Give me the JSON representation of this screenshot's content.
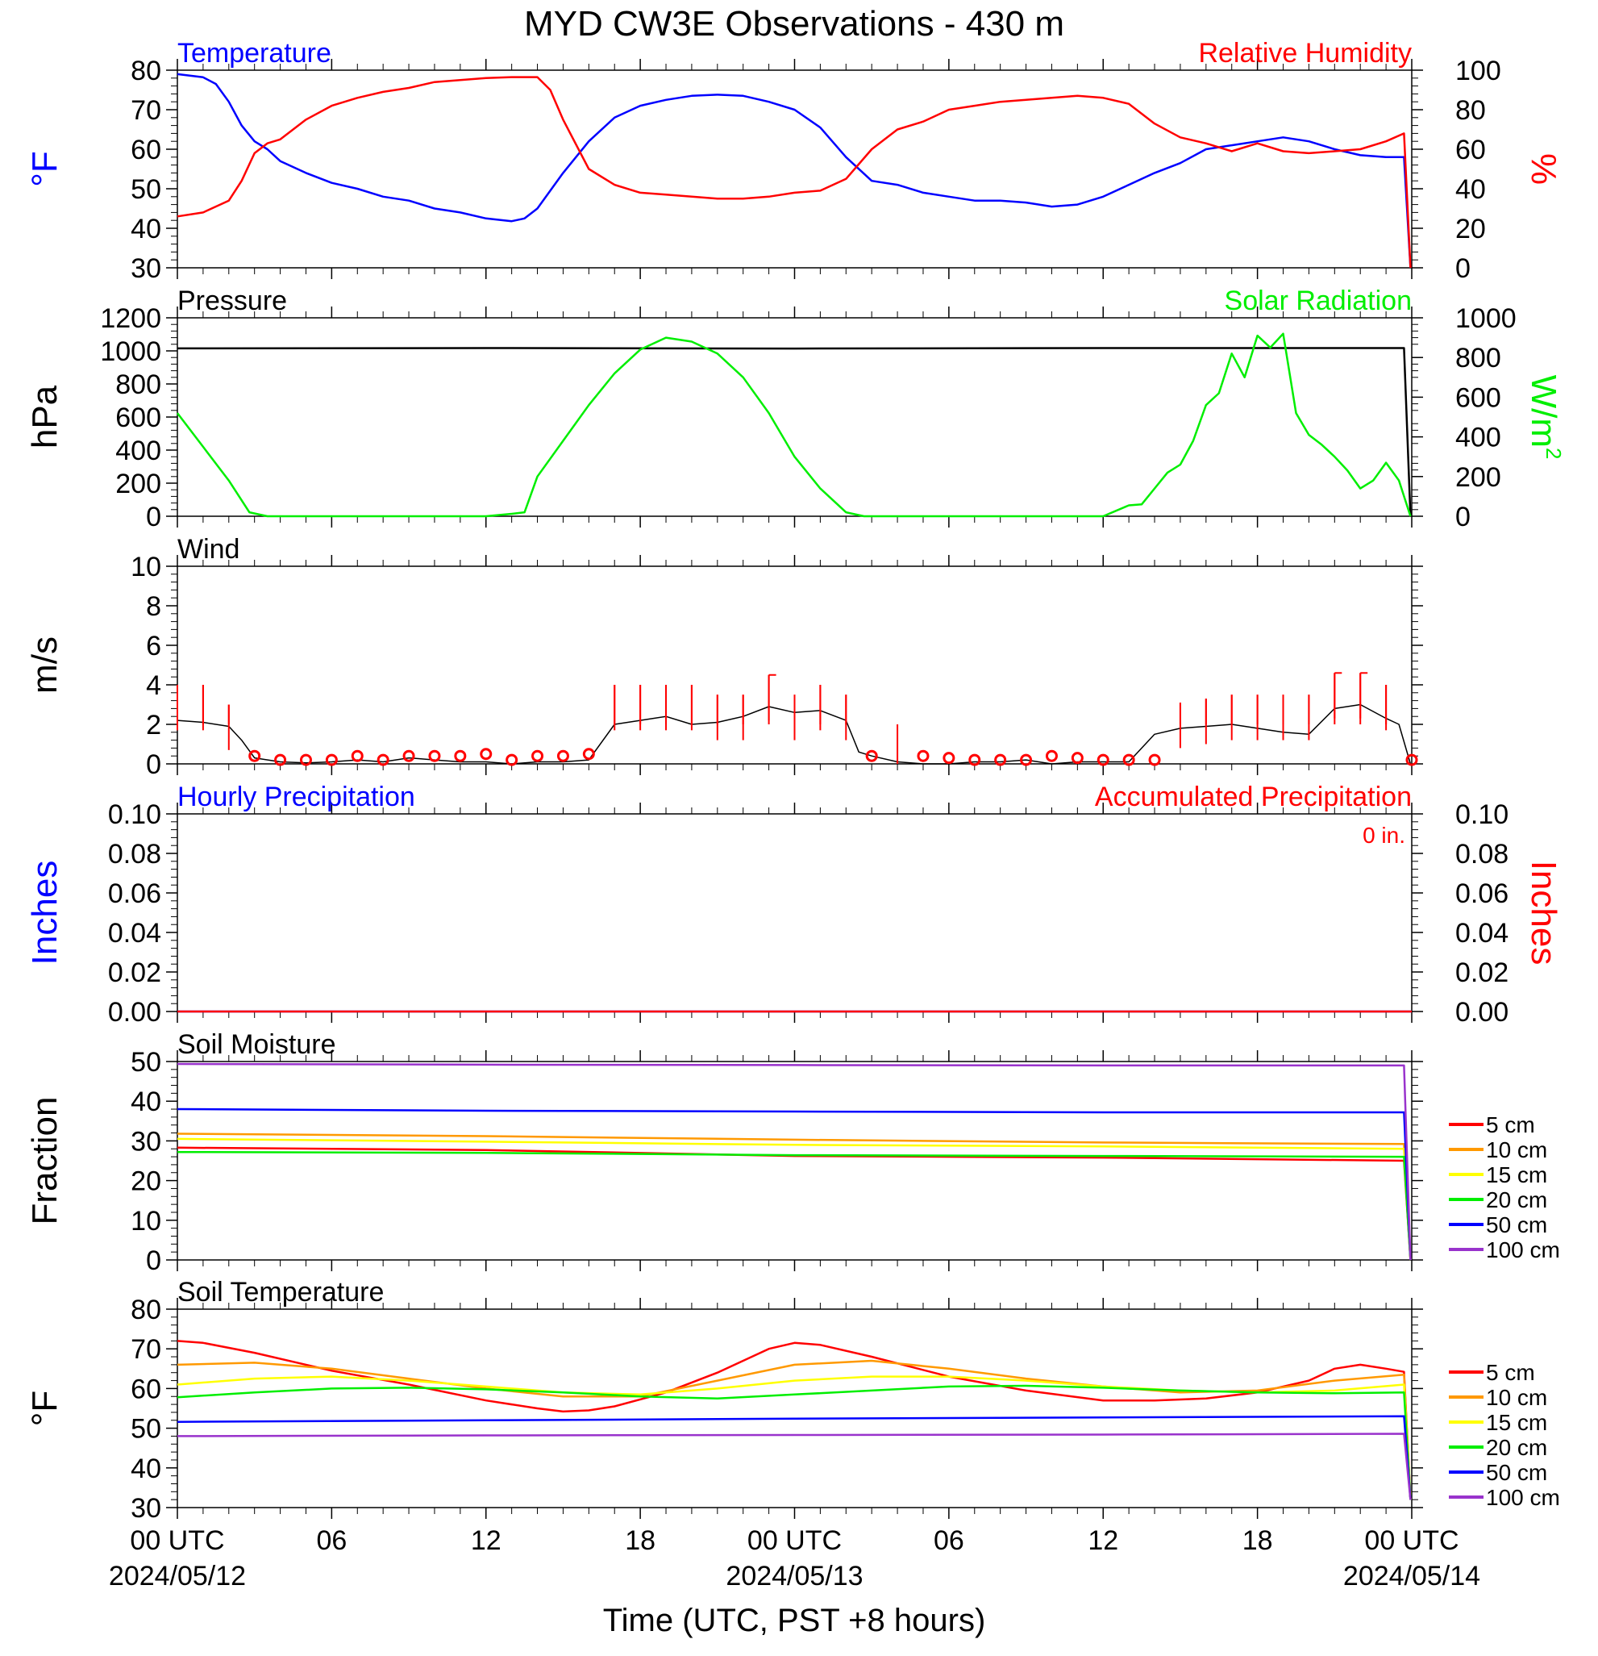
{
  "title": "MYD CW3E Observations - 430 m",
  "xlabel": "Time (UTC, PST +8 hours)",
  "colors": {
    "blue": "#0000ff",
    "red": "#ff0000",
    "green": "#00ee00",
    "black": "#000000",
    "orange": "#ff9900",
    "yellow": "#ffff00",
    "purple": "#9933cc"
  },
  "chart_data": [
    {
      "id": "temp_rh",
      "type": "line",
      "left_label": "Temperature",
      "right_label": "Relative Humidity",
      "left_unit": "°F",
      "right_unit": "%",
      "ylim_left": [
        30,
        80
      ],
      "yticks_left": [
        "30",
        "40",
        "50",
        "60",
        "70",
        "80"
      ],
      "ylim_right": [
        0,
        100
      ],
      "yticks_right": [
        "0",
        "20",
        "40",
        "60",
        "80",
        "100"
      ],
      "series": [
        {
          "name": "Temperature",
          "axis": "left",
          "color": "#0000ff",
          "x": [
            0,
            1,
            1.5,
            2,
            2.5,
            3,
            3.5,
            4,
            5,
            6,
            7,
            8,
            9,
            10,
            11,
            12,
            13,
            13.5,
            14,
            15,
            16,
            17,
            18,
            19,
            20,
            21,
            22,
            23,
            24,
            25,
            26,
            27,
            28,
            29,
            30,
            31,
            32,
            33,
            34,
            35,
            36,
            37,
            38,
            39,
            40,
            41,
            42,
            43,
            44,
            45,
            46,
            47,
            47.7,
            47.95
          ],
          "y": [
            79,
            78.2,
            76.5,
            72,
            66,
            62,
            60,
            57,
            54,
            51.5,
            50,
            48,
            47,
            45,
            44,
            42.5,
            41.8,
            42.5,
            45,
            54,
            62,
            68,
            71,
            72.5,
            73.5,
            73.8,
            73.5,
            72,
            70,
            65.5,
            58,
            52,
            51,
            49,
            48,
            47,
            47,
            46.5,
            45.5,
            46,
            48,
            51,
            54,
            56.5,
            60,
            61,
            62,
            63,
            62,
            60,
            58.5,
            58,
            58,
            30
          ]
        },
        {
          "name": "Relative Humidity",
          "axis": "right",
          "color": "#ff0000",
          "x": [
            0,
            1,
            2,
            2.5,
            3,
            3.5,
            4,
            5,
            6,
            7,
            8,
            9,
            10,
            11,
            12,
            13,
            14,
            14.5,
            15,
            16,
            17,
            18,
            19,
            20,
            21,
            22,
            23,
            24,
            25,
            26,
            27,
            28,
            29,
            30,
            31,
            32,
            33,
            34,
            35,
            36,
            37,
            38,
            39,
            40,
            41,
            42,
            43,
            44,
            45,
            46,
            47,
            47.7,
            47.95
          ],
          "y": [
            26,
            28,
            34,
            44,
            58,
            63,
            65,
            75,
            82,
            86,
            89,
            91,
            94,
            95,
            96,
            96.5,
            96.5,
            90,
            75,
            50,
            42,
            38,
            37,
            36,
            35,
            35,
            36,
            38,
            39,
            45,
            60,
            70,
            74,
            80,
            82,
            84,
            85,
            86,
            87,
            86,
            83,
            73,
            66,
            63,
            59,
            63,
            59,
            58,
            59,
            60,
            64,
            68,
            0
          ]
        }
      ]
    },
    {
      "id": "pressure_solar",
      "type": "line",
      "left_label": "Pressure",
      "right_label": "Solar Radiation",
      "left_unit": "hPa",
      "right_unit": "W/m",
      "right_unit_sup": "2",
      "ylim_left": [
        0,
        1200
      ],
      "yticks_left": [
        "0",
        "200",
        "400",
        "600",
        "800",
        "1000",
        "1200"
      ],
      "ylim_right": [
        0,
        1000
      ],
      "yticks_right": [
        "0",
        "200",
        "400",
        "600",
        "800",
        "1000"
      ],
      "series": [
        {
          "name": "Pressure",
          "axis": "left",
          "color": "#000000",
          "x": [
            0,
            12,
            24,
            36,
            47.7,
            47.95
          ],
          "y": [
            1015,
            1017,
            1014,
            1017,
            1017,
            0
          ]
        },
        {
          "name": "Solar Radiation",
          "axis": "right",
          "color": "#00ee00",
          "x": [
            0,
            1,
            2,
            2.8,
            3.5,
            12,
            13,
            13.5,
            14,
            15,
            16,
            17,
            18,
            19,
            20,
            21,
            22,
            23,
            24,
            25,
            26,
            26.7,
            27.5,
            36,
            37,
            37.5,
            38,
            38.5,
            39,
            39.5,
            40,
            40.5,
            41,
            41.5,
            42,
            42.5,
            43,
            43.5,
            44,
            44.5,
            45,
            45.5,
            46,
            46.5,
            47,
            47.5,
            47.95
          ],
          "y": [
            520,
            350,
            180,
            20,
            0,
            0,
            12,
            20,
            200,
            380,
            560,
            720,
            840,
            900,
            880,
            820,
            700,
            520,
            300,
            140,
            20,
            0,
            0,
            0,
            55,
            60,
            140,
            220,
            260,
            380,
            560,
            620,
            820,
            700,
            910,
            850,
            920,
            520,
            410,
            360,
            300,
            230,
            140,
            180,
            270,
            180,
            0
          ]
        }
      ]
    },
    {
      "id": "wind",
      "type": "line",
      "left_label": "Wind",
      "left_unit": "m/s",
      "ylim_left": [
        0,
        10
      ],
      "yticks_left": [
        "0",
        "2",
        "4",
        "6",
        "8",
        "10"
      ],
      "series": [
        {
          "name": "Wind",
          "axis": "left",
          "color": "#000000",
          "x": [
            0,
            1,
            2,
            2.5,
            3,
            4,
            5,
            6,
            7,
            8,
            9,
            10,
            11,
            12,
            13,
            14,
            15,
            16,
            17,
            18,
            19,
            20,
            21,
            22,
            23,
            24,
            25,
            26,
            26.5,
            27,
            28,
            29,
            30,
            31,
            32,
            33,
            34,
            35,
            36,
            37,
            38,
            39,
            40,
            41,
            42,
            43,
            44,
            45,
            46,
            47,
            47.5,
            47.95
          ],
          "y": [
            2.2,
            2.1,
            1.9,
            1.2,
            0.3,
            0.1,
            0.05,
            0.1,
            0.2,
            0.1,
            0.3,
            0.2,
            0.1,
            0.1,
            0,
            0.1,
            0.1,
            0.2,
            2.0,
            2.2,
            2.4,
            2.0,
            2.1,
            2.4,
            2.9,
            2.6,
            2.7,
            2.2,
            0.6,
            0.4,
            0.1,
            0,
            0,
            0.1,
            0.1,
            0.2,
            0,
            0.1,
            0.1,
            0.1,
            1.5,
            1.8,
            1.9,
            2.0,
            1.8,
            1.6,
            1.5,
            2.8,
            3.0,
            2.3,
            2.0,
            0
          ]
        },
        {
          "name": "Wind barb",
          "axis": "left",
          "color": "#ff0000",
          "x": [
            0,
            1,
            2,
            3,
            4,
            5,
            6,
            7,
            8,
            9,
            10,
            11,
            12,
            13,
            14,
            15,
            16,
            17,
            18,
            19,
            20,
            21,
            22,
            23,
            24,
            25,
            26,
            27,
            28,
            29,
            30,
            31,
            32,
            33,
            34,
            35,
            36,
            37,
            38,
            39,
            40,
            41,
            42,
            43,
            44,
            45,
            46,
            47,
            48
          ],
          "y": [
            4,
            4,
            3,
            0.4,
            0,
            0,
            0,
            0.2,
            0,
            0.4,
            0.2,
            0.2,
            0.3,
            0,
            0.2,
            0.2,
            0.3,
            4,
            4,
            4,
            4,
            3.5,
            3.5,
            4.5,
            3.5,
            4,
            3.5,
            0.4,
            2,
            0.2,
            0.1,
            0,
            0,
            0,
            0.4,
            0.1,
            0,
            0,
            0,
            3.1,
            3.3,
            3.5,
            3.5,
            3.5,
            3.5,
            4.6,
            4.6,
            4,
            0
          ]
        }
      ]
    },
    {
      "id": "precip",
      "type": "line",
      "left_label": "Hourly Precipitation",
      "right_label": "Accumulated Precipitation",
      "left_unit": "Inches",
      "right_unit": "Inches",
      "annotation": "0 in.",
      "ylim_left": [
        0,
        0.1
      ],
      "yticks_left": [
        "0.00",
        "0.02",
        "0.04",
        "0.06",
        "0.08",
        "0.10"
      ],
      "ylim_right": [
        0,
        0.1
      ],
      "yticks_right": [
        "0.00",
        "0.02",
        "0.04",
        "0.06",
        "0.08",
        "0.10"
      ],
      "series": [
        {
          "name": "Hourly Precipitation",
          "axis": "left",
          "color": "#0000ff",
          "x": [
            0,
            48
          ],
          "y": [
            0,
            0
          ]
        },
        {
          "name": "Accumulated Precipitation",
          "axis": "right",
          "color": "#ff0000",
          "x": [
            0,
            48
          ],
          "y": [
            0,
            0
          ]
        }
      ]
    },
    {
      "id": "soil_moisture",
      "type": "line",
      "left_label": "Soil Moisture",
      "left_unit": "Fraction",
      "ylim_left": [
        0,
        50
      ],
      "yticks_left": [
        "0",
        "10",
        "20",
        "30",
        "40",
        "50"
      ],
      "series": [
        {
          "name": "5 cm",
          "axis": "left",
          "color": "#ff0000",
          "x": [
            0,
            12,
            24,
            36,
            47.7,
            47.95
          ],
          "y": [
            28.3,
            27.7,
            26.2,
            25.8,
            25,
            0
          ]
        },
        {
          "name": "10 cm",
          "axis": "left",
          "color": "#ff9900",
          "x": [
            0,
            12,
            24,
            36,
            47.7,
            47.95
          ],
          "y": [
            31.8,
            31.2,
            30.3,
            29.6,
            29.2,
            0
          ]
        },
        {
          "name": "15 cm",
          "axis": "left",
          "color": "#ffff00",
          "x": [
            0,
            12,
            24,
            36,
            47.7,
            47.95
          ],
          "y": [
            30.5,
            29.8,
            29.0,
            28.6,
            28,
            0
          ]
        },
        {
          "name": "20 cm",
          "axis": "left",
          "color": "#00ee00",
          "x": [
            0,
            12,
            24,
            36,
            47.7,
            47.95
          ],
          "y": [
            27.2,
            27.0,
            26.4,
            26.2,
            26,
            0
          ]
        },
        {
          "name": "50 cm",
          "axis": "left",
          "color": "#0000ff",
          "x": [
            0,
            12,
            24,
            36,
            47.7,
            47.95
          ],
          "y": [
            38,
            37.6,
            37.4,
            37.2,
            37.2,
            0
          ]
        },
        {
          "name": "100 cm",
          "axis": "left",
          "color": "#9933cc",
          "x": [
            0,
            12,
            24,
            36,
            47.7,
            47.95
          ],
          "y": [
            49.4,
            49.2,
            49.1,
            49.0,
            49,
            0
          ]
        }
      ]
    },
    {
      "id": "soil_temp",
      "type": "line",
      "left_label": "Soil Temperature",
      "left_unit": "°F",
      "ylim_left": [
        30,
        80
      ],
      "yticks_left": [
        "30",
        "40",
        "50",
        "60",
        "70",
        "80"
      ],
      "series": [
        {
          "name": "5 cm",
          "axis": "left",
          "color": "#ff0000",
          "x": [
            0,
            1,
            3,
            6,
            9,
            12,
            14,
            15,
            16,
            17,
            19,
            21,
            23,
            24,
            25,
            27,
            30,
            33,
            36,
            38,
            40,
            42,
            44,
            45,
            46,
            47,
            47.7,
            47.95
          ],
          "y": [
            72,
            71.5,
            69,
            64.5,
            61,
            57,
            55,
            54.2,
            54.5,
            55.5,
            59,
            64,
            70,
            71.5,
            71,
            68,
            63,
            59.5,
            57,
            57,
            57.5,
            59,
            62,
            65,
            66,
            65,
            64.2,
            32
          ]
        },
        {
          "name": "10 cm",
          "axis": "left",
          "color": "#ff9900",
          "x": [
            0,
            3,
            6,
            9,
            12,
            15,
            18,
            21,
            24,
            27,
            30,
            33,
            36,
            39,
            42,
            45,
            47.7,
            47.95
          ],
          "y": [
            66,
            66.5,
            65,
            62.5,
            60,
            58,
            58,
            62,
            66,
            67,
            65,
            62.5,
            60.5,
            59,
            59.5,
            62,
            63.5,
            32
          ]
        },
        {
          "name": "15 cm",
          "axis": "left",
          "color": "#ffff00",
          "x": [
            0,
            3,
            6,
            9,
            12,
            15,
            18,
            21,
            24,
            27,
            30,
            33,
            36,
            39,
            42,
            45,
            47.7,
            47.95
          ],
          "y": [
            61,
            62.5,
            63,
            62,
            60.5,
            59,
            58.5,
            60,
            62,
            63,
            63,
            62,
            60.5,
            59.5,
            59,
            59.5,
            61,
            32
          ]
        },
        {
          "name": "20 cm",
          "axis": "left",
          "color": "#00ee00",
          "x": [
            0,
            3,
            6,
            9,
            12,
            15,
            18,
            21,
            24,
            27,
            30,
            33,
            36,
            39,
            42,
            45,
            47.7,
            47.95
          ],
          "y": [
            57.8,
            59,
            60,
            60.2,
            59.8,
            59,
            58,
            57.5,
            58.5,
            59.5,
            60.5,
            60.7,
            60.2,
            59.5,
            59,
            58.8,
            59,
            32
          ]
        },
        {
          "name": "50 cm",
          "axis": "left",
          "color": "#0000ff",
          "x": [
            0,
            12,
            24,
            36,
            47.7,
            47.95
          ],
          "y": [
            51.6,
            52,
            52.4,
            52.7,
            53,
            32
          ]
        },
        {
          "name": "100 cm",
          "axis": "left",
          "color": "#9933cc",
          "x": [
            0,
            12,
            24,
            36,
            47.7,
            47.95
          ],
          "y": [
            48,
            48.2,
            48.3,
            48.4,
            48.6,
            32
          ]
        }
      ]
    }
  ],
  "xaxis": {
    "range": [
      0,
      48
    ],
    "major_ticks": [
      0,
      6,
      12,
      18,
      24,
      30,
      36,
      42,
      48
    ],
    "tick_labels": [
      "00 UTC",
      "06",
      "12",
      "18",
      "00 UTC",
      "06",
      "12",
      "18",
      "00 UTC"
    ],
    "date_labels": [
      {
        "x": 0,
        "label": "2024/05/12"
      },
      {
        "x": 24,
        "label": "2024/05/13"
      },
      {
        "x": 48,
        "label": "2024/05/14"
      }
    ]
  }
}
